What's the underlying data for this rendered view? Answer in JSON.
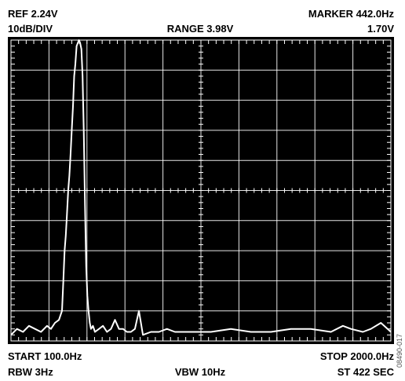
{
  "header": {
    "ref": "REF 2.24V",
    "scale": "10dB/DIV",
    "range": "RANGE 3.98V",
    "marker": "MARKER 442.0Hz",
    "marker_value": "1.70V"
  },
  "footer": {
    "start": "START 100.0Hz",
    "stop": "STOP 2000.0Hz",
    "rbw": "RBW 3Hz",
    "vbw": "VBW 10Hz",
    "sweep_time": "ST 422 SEC"
  },
  "figure_id": "08490-017",
  "colors": {
    "screen_background": "#000000",
    "trace": "#ffffff",
    "graticule": "#ffffff"
  },
  "chart_data": {
    "type": "line",
    "title": "",
    "xlabel": "",
    "ylabel": "",
    "x_unit": "Hz",
    "y_unit": "dB",
    "xlim": [
      100,
      2000
    ],
    "ylim": [
      -100,
      0
    ],
    "grid": true,
    "grid_divisions": {
      "x": 10,
      "y": 10
    },
    "series": [
      {
        "name": "",
        "x": [
          100,
          130,
          160,
          190,
          220,
          250,
          280,
          300,
          320,
          340,
          355,
          362,
          368,
          374,
          380,
          386,
          392,
          398,
          404,
          410,
          416,
          422,
          428,
          434,
          440,
          446,
          452,
          458,
          464,
          470,
          476,
          482,
          488,
          494,
          500,
          510,
          520,
          540,
          560,
          580,
          600,
          620,
          640,
          660,
          680,
          700,
          720,
          740,
          760,
          800,
          840,
          880,
          920,
          960,
          1000,
          1100,
          1200,
          1300,
          1400,
          1500,
          1600,
          1700,
          1760,
          1800,
          1860,
          1900,
          1950,
          2000
        ],
        "y": [
          -98,
          -96,
          -97,
          -95,
          -96,
          -97,
          -95,
          -96,
          -94,
          -93,
          -90,
          -80,
          -70,
          -65,
          -58,
          -50,
          -45,
          -38,
          -30,
          -22,
          -12,
          -8,
          -2,
          -1,
          0,
          -1,
          -3,
          -12,
          -30,
          -55,
          -75,
          -85,
          -90,
          -94,
          -96,
          -95,
          -97,
          -96,
          -95,
          -97,
          -96,
          -93,
          -96,
          -96,
          -97,
          -97,
          -96,
          -90,
          -98,
          -97,
          -97,
          -96,
          -97,
          -97,
          -97,
          -97,
          -96,
          -97,
          -97,
          -96,
          -96,
          -97,
          -95,
          -96,
          -97,
          -96,
          -94,
          -97
        ]
      }
    ]
  }
}
